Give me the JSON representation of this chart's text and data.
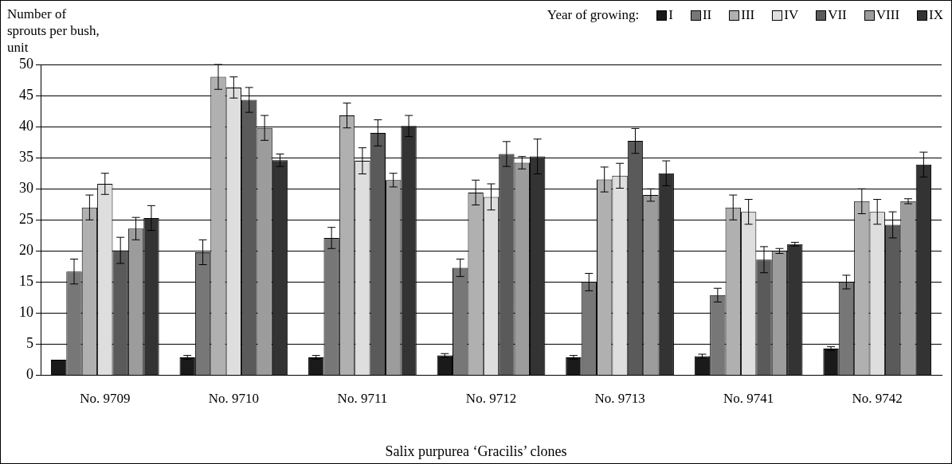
{
  "chart_data": {
    "type": "bar",
    "ylabel": "Number of sprouts per bush, unit",
    "xlabel": "Salix purpurea ‘Gracilis’ clones",
    "legend_title": "Year of growing:",
    "legend": "top right",
    "grid": "y",
    "categories": [
      "No. 9709",
      "No. 9710",
      "No. 9711",
      "No. 9712",
      "No. 9713",
      "No. 9741",
      "No. 9742"
    ],
    "ylim": [
      0,
      50
    ],
    "yticks": [
      0,
      5,
      10,
      15,
      20,
      25,
      30,
      35,
      40,
      45,
      50
    ],
    "series": [
      {
        "name": "I",
        "color": "#1a1a1a",
        "values": [
          2.5,
          2.9,
          2.9,
          3.2,
          2.9,
          3.1,
          4.3
        ],
        "errors": [
          null,
          0.3,
          0.3,
          0.3,
          0.3,
          0.3,
          0.3
        ]
      },
      {
        "name": "II",
        "color": "#777777",
        "values": [
          16.7,
          19.8,
          22.1,
          17.3,
          15,
          12.9,
          15
        ],
        "errors": [
          2,
          2,
          1.7,
          1.4,
          1.4,
          1.1,
          1.1
        ]
      },
      {
        "name": "III",
        "color": "#b0b0b0",
        "values": [
          27,
          48,
          41.8,
          29.4,
          31.5,
          27,
          28
        ],
        "errors": [
          2,
          2,
          2,
          2,
          2,
          2,
          2
        ]
      },
      {
        "name": "IV",
        "color": "#dedede",
        "values": [
          30.8,
          46.3,
          34.5,
          28.7,
          32.1,
          26.3,
          26.3
        ],
        "errors": [
          1.7,
          1.7,
          2.1,
          2.1,
          2,
          2,
          2
        ]
      },
      {
        "name": "VII",
        "color": "#5a5a5a",
        "values": [
          20.1,
          44.3,
          39,
          35.6,
          37.7,
          18.6,
          24.2
        ],
        "errors": [
          2.1,
          2,
          2.1,
          2,
          2,
          2.1,
          2.1
        ]
      },
      {
        "name": "VIII",
        "color": "#9c9c9c",
        "values": [
          23.6,
          39.8,
          31.4,
          34.2,
          29,
          20,
          28
        ],
        "errors": [
          1.8,
          2,
          1.1,
          1,
          1,
          0.4,
          0.4
        ]
      },
      {
        "name": "IX",
        "color": "#333333",
        "values": [
          25.3,
          34.6,
          40.1,
          35.2,
          32.5,
          21.1,
          33.9
        ],
        "errors": [
          2,
          1,
          1.7,
          2.8,
          2,
          0.3,
          2
        ]
      }
    ]
  }
}
